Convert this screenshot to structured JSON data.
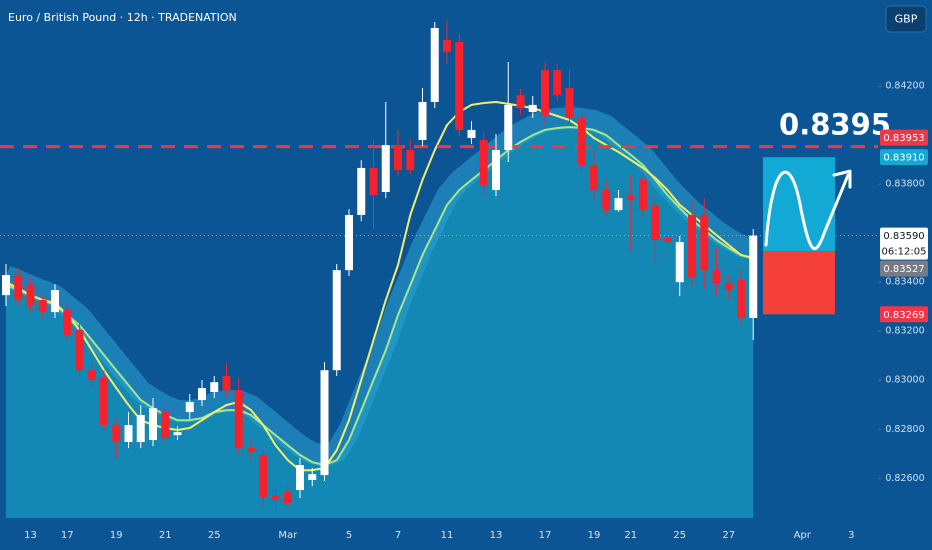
{
  "chart_data": {
    "type": "candlestick",
    "title": "Euro / British Pound · 12h · TRADENATION",
    "currency": "GBP",
    "categories": [
      null,
      null,
      "13",
      null,
      null,
      "17",
      null,
      null,
      null,
      "19",
      null,
      null,
      null,
      "21",
      null,
      null,
      null,
      "25",
      null,
      null,
      null,
      null,
      null,
      "Mar",
      null,
      null,
      null,
      null,
      "5",
      null,
      null,
      null,
      "7",
      null,
      null,
      null,
      "11",
      null,
      null,
      null,
      "13",
      null,
      null,
      null,
      "17",
      null,
      null,
      null,
      "19",
      null,
      null,
      "21",
      null,
      null,
      null,
      "25",
      null,
      null,
      null,
      "27",
      null,
      null,
      null,
      null,
      null,
      "Apr",
      null,
      null,
      null,
      "3"
    ],
    "open": [
      0.83347,
      0.83429,
      0.83388,
      0.83327,
      0.83278,
      0.83286,
      0.83205,
      0.83041,
      0.83009,
      0.82817,
      0.82748,
      0.82748,
      0.82756,
      0.8287,
      0.82776,
      0.8287,
      0.82919,
      0.82952,
      0.83017,
      0.8296,
      0.82723,
      0.82695,
      0.82531,
      0.82544,
      0.82552,
      0.82593,
      0.82613,
      0.83041,
      0.83449,
      0.83674,
      0.83866,
      0.83768,
      0.83959,
      0.83939,
      0.8398,
      0.84135,
      0.84388,
      0.8438,
      0.83988,
      0.8398,
      0.83776,
      0.83939,
      0.84163,
      0.84094,
      0.84265,
      0.84265,
      0.84192,
      0.8407,
      0.83878,
      0.83776,
      0.83694,
      0.83751,
      0.83817,
      0.83715,
      0.8358,
      0.834,
      0.83674,
      0.83674,
      0.83449,
      0.83396,
      0.83409,
      0.83254,
      null,
      null,
      null,
      null,
      null,
      null,
      null,
      null
    ],
    "high": [
      0.83474,
      0.83458,
      0.83417,
      0.83352,
      0.83392,
      0.83323,
      0.83229,
      0.83074,
      0.83041,
      0.82842,
      0.8287,
      0.82899,
      0.82927,
      0.82895,
      0.82813,
      0.82944,
      0.83001,
      0.83017,
      0.83066,
      0.83009,
      0.82756,
      0.82715,
      0.82568,
      0.82576,
      0.82682,
      0.82642,
      0.83074,
      0.83474,
      0.83698,
      0.83898,
      0.8398,
      0.84135,
      0.84021,
      0.83984,
      0.84192,
      0.84461,
      0.84469,
      0.84412,
      0.84057,
      0.84012,
      0.84004,
      0.84298,
      0.84188,
      0.84159,
      0.84298,
      0.8429,
      0.84265,
      0.84102,
      0.83939,
      0.83817,
      0.83776,
      0.83833,
      0.83841,
      0.83755,
      0.83604,
      0.83588,
      0.83731,
      0.83743,
      0.83539,
      0.83429,
      0.83449,
      0.83617,
      null,
      null,
      null,
      null,
      null,
      null,
      null,
      null
    ],
    "low": [
      0.83303,
      0.83303,
      0.83282,
      0.83254,
      0.83254,
      0.8316,
      0.83017,
      0.82976,
      0.82793,
      0.82682,
      0.82723,
      0.82723,
      0.82731,
      0.8274,
      0.82756,
      0.82842,
      0.82895,
      0.82927,
      0.82935,
      0.82699,
      0.82674,
      0.82487,
      0.82462,
      0.82478,
      0.82519,
      0.82568,
      0.82589,
      0.83017,
      0.83425,
      0.83649,
      0.83617,
      0.83743,
      0.83833,
      0.83841,
      0.83955,
      0.8411,
      0.8429,
      0.83996,
      0.83964,
      0.83751,
      0.83751,
      0.8389,
      0.84082,
      0.8407,
      0.84045,
      0.84139,
      0.84045,
      0.83853,
      0.83735,
      0.8367,
      0.83686,
      0.83531,
      0.8367,
      0.83474,
      0.83547,
      0.83343,
      0.83384,
      0.83372,
      0.83343,
      0.83327,
      0.83229,
      0.83164,
      null,
      null,
      null,
      null,
      null,
      null,
      null,
      null
    ],
    "close": [
      0.83429,
      0.83327,
      0.83307,
      0.83278,
      0.83368,
      0.83184,
      0.83041,
      0.83001,
      0.82817,
      0.82748,
      0.82817,
      0.82858,
      0.82886,
      0.82764,
      0.82788,
      0.82911,
      0.82968,
      0.82992,
      0.8296,
      0.82723,
      0.82707,
      0.82523,
      0.82511,
      0.82499,
      0.82654,
      0.82617,
      0.83041,
      0.83449,
      0.83674,
      0.83866,
      0.83755,
      0.83959,
      0.83857,
      0.83857,
      0.84135,
      0.84437,
      0.84339,
      0.84021,
      0.84021,
      0.83796,
      0.83939,
      0.84123,
      0.8411,
      0.84123,
      0.84082,
      0.84163,
      0.8407,
      0.83878,
      0.83776,
      0.83694,
      0.83743,
      0.83735,
      0.83694,
      0.83572,
      0.83564,
      0.83564,
      0.83417,
      0.83449,
      0.83396,
      0.83368,
      0.83254,
      0.8359,
      null,
      null,
      null,
      null,
      null,
      null,
      null,
      null
    ],
    "up_color": "#ffffff",
    "down_color": "#f5222d",
    "series": [
      {
        "color": "#a8e68c",
        "fill": "#1488b5",
        "values": [
          0.83388,
          0.83368,
          0.83347,
          0.83327,
          0.83307,
          0.83266,
          0.83225,
          0.83164,
          0.83103,
          0.83041,
          0.8298,
          0.82919,
          0.82886,
          0.82858,
          0.82837,
          0.82837,
          0.82846,
          0.8287,
          0.82878,
          0.82878,
          0.82858,
          0.82817,
          0.82776,
          0.82735,
          0.82695,
          0.82666,
          0.82654,
          0.82674,
          0.82756,
          0.82878,
          0.83001,
          0.83123,
          0.83266,
          0.83388,
          0.83511,
          0.83613,
          0.83715,
          0.83776,
          0.83817,
          0.83857,
          0.83898,
          0.83939,
          0.83972,
          0.84,
          0.84021,
          0.84029,
          0.84033,
          0.84029,
          0.84021,
          0.84,
          0.83959,
          0.83919,
          0.83878,
          0.83817,
          0.83755,
          0.83702,
          0.83653,
          0.83613,
          0.83572,
          0.83539,
          0.83511,
          0.83498,
          null,
          null,
          null,
          null,
          null,
          null,
          null,
          null
        ]
      },
      {
        "color": "#f2ee6a",
        "values": [
          0.834,
          0.83376,
          0.83347,
          0.83327,
          0.83315,
          0.83266,
          0.83205,
          0.83123,
          0.83041,
          0.82968,
          0.82899,
          0.82837,
          0.82817,
          0.82805,
          0.82797,
          0.82805,
          0.82837,
          0.8287,
          0.82899,
          0.82911,
          0.82878,
          0.82817,
          0.82735,
          0.82674,
          0.82633,
          0.82633,
          0.82642,
          0.82715,
          0.82837,
          0.83001,
          0.83164,
          0.83327,
          0.8347,
          0.83674,
          0.83817,
          0.83939,
          0.84041,
          0.84094,
          0.84123,
          0.84131,
          0.84135,
          0.84127,
          0.84119,
          0.8411,
          0.84094,
          0.84078,
          0.84061,
          0.84029,
          0.83988,
          0.83959,
          0.83931,
          0.83898,
          0.83866,
          0.83825,
          0.83776,
          0.83715,
          0.83674,
          0.83633,
          0.83592,
          0.83551,
          0.83511,
          0.83498,
          null,
          null,
          null,
          null,
          null,
          null,
          null,
          null
        ]
      }
    ],
    "ylim": [
      0.82438,
      0.84551
    ],
    "yticks": [
      {
        "value": 0.826,
        "label": "0.82600"
      },
      {
        "value": 0.828,
        "label": "0.82800"
      },
      {
        "value": 0.83,
        "label": "0.83000"
      },
      {
        "value": 0.832,
        "label": "0.83200"
      },
      {
        "value": 0.834,
        "label": "0.83400"
      },
      {
        "value": 0.838,
        "label": "0.83800"
      },
      {
        "value": 0.842,
        "label": "0.84200"
      }
    ],
    "lines": [
      {
        "value": 0.83953,
        "color": "#f23645",
        "style": "dashed"
      },
      {
        "value": 0.8359,
        "color": "#8fb0c8",
        "style": "dotted"
      }
    ],
    "price_labels": [
      {
        "value": 0.83953,
        "label": "0.83953",
        "color": "#f23645"
      },
      {
        "value": 0.8391,
        "label": "0.83910",
        "color": "#12a9d3"
      },
      {
        "value": 0.8359,
        "label": "0.83590",
        "color": "#ffffff",
        "countdown": "06:12:05"
      },
      {
        "value": 0.83527,
        "label": "0.83527",
        "color": "#787b86"
      },
      {
        "value": 0.83269,
        "label": "0.83269",
        "color": "#f23645"
      }
    ],
    "annotation": {
      "value": 0.83953,
      "label": "0.8395"
    },
    "position": {
      "target": 0.8391,
      "entry": 0.83527,
      "stop": 0.83269,
      "target_color": "#12aad4",
      "stop_color": "#f5403a"
    }
  }
}
